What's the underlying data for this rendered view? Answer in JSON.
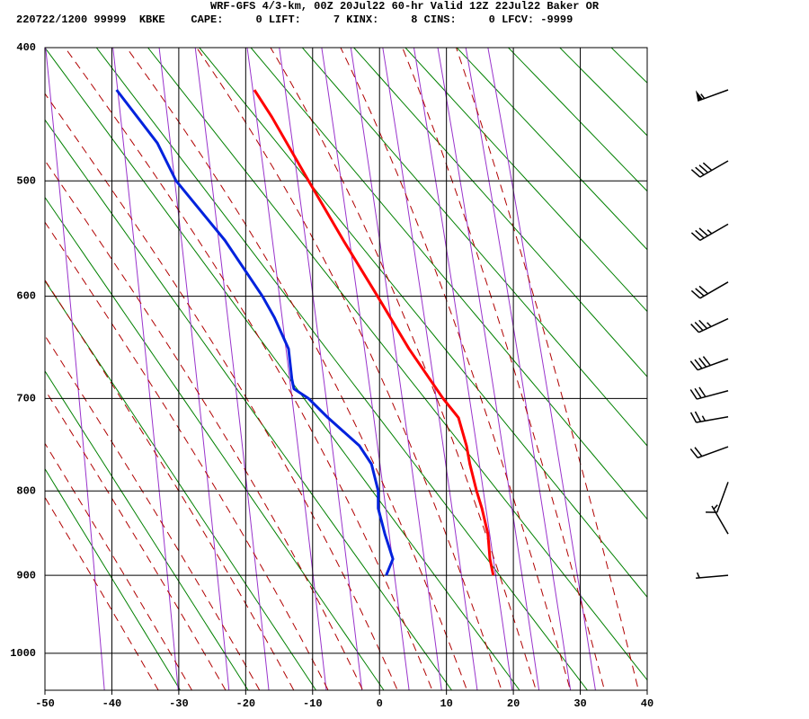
{
  "chart_data": {
    "type": "skewt",
    "title": "WRF-GFS 4/3-km, 00Z 20Jul22 60-hr Valid 12Z 22Jul22 Baker OR",
    "subtitle": "220722/1200 99999  KBKE    CAPE:     0 LIFT:     7 KINX:     8 CINS:     0 LFCV: -9999",
    "xlim": [
      -50,
      40
    ],
    "xticks": [
      -50,
      -40,
      -30,
      -20,
      -10,
      0,
      10,
      20,
      30,
      40
    ],
    "ylim": [
      1050,
      400
    ],
    "yticks": [
      400,
      500,
      600,
      700,
      800,
      900,
      1000
    ],
    "grid": true,
    "series": [
      {
        "color": "#ff0000",
        "x": [
          17.0,
          16.5,
          16.2,
          15.3,
          14.5,
          13.5,
          13.0,
          11.8,
          9.5,
          4.4,
          -0.3,
          -5.4,
          -10.6,
          -16.1,
          -18.7
        ],
        "values": [
          900,
          880,
          850,
          820,
          800,
          770,
          750,
          720,
          700,
          650,
          600,
          550,
          500,
          450,
          430
        ]
      },
      {
        "color": "#0022dd",
        "x": [
          1.0,
          2.0,
          0.8,
          -0.2,
          -0.2,
          -1.2,
          -3.0,
          -7.7,
          -10.6,
          -12.8,
          -13.1,
          -13.6,
          -15.7,
          -17.5,
          -23.1,
          -30.4,
          -33.2,
          -39.3
        ],
        "values": [
          900,
          880,
          850,
          820,
          800,
          770,
          750,
          720,
          700,
          690,
          680,
          650,
          620,
          600,
          550,
          500,
          470,
          430
        ]
      }
    ],
    "wind": {
      "pressure": [
        430,
        484,
        536,
        587,
        621,
        660,
        692,
        719,
        751,
        790,
        850,
        900
      ],
      "direction": [
        250,
        240,
        240,
        240,
        245,
        250,
        255,
        260,
        250,
        200,
        330,
        265
      ],
      "speed": [
        55,
        40,
        35,
        30,
        35,
        40,
        30,
        25,
        20,
        10,
        5,
        5
      ]
    }
  }
}
